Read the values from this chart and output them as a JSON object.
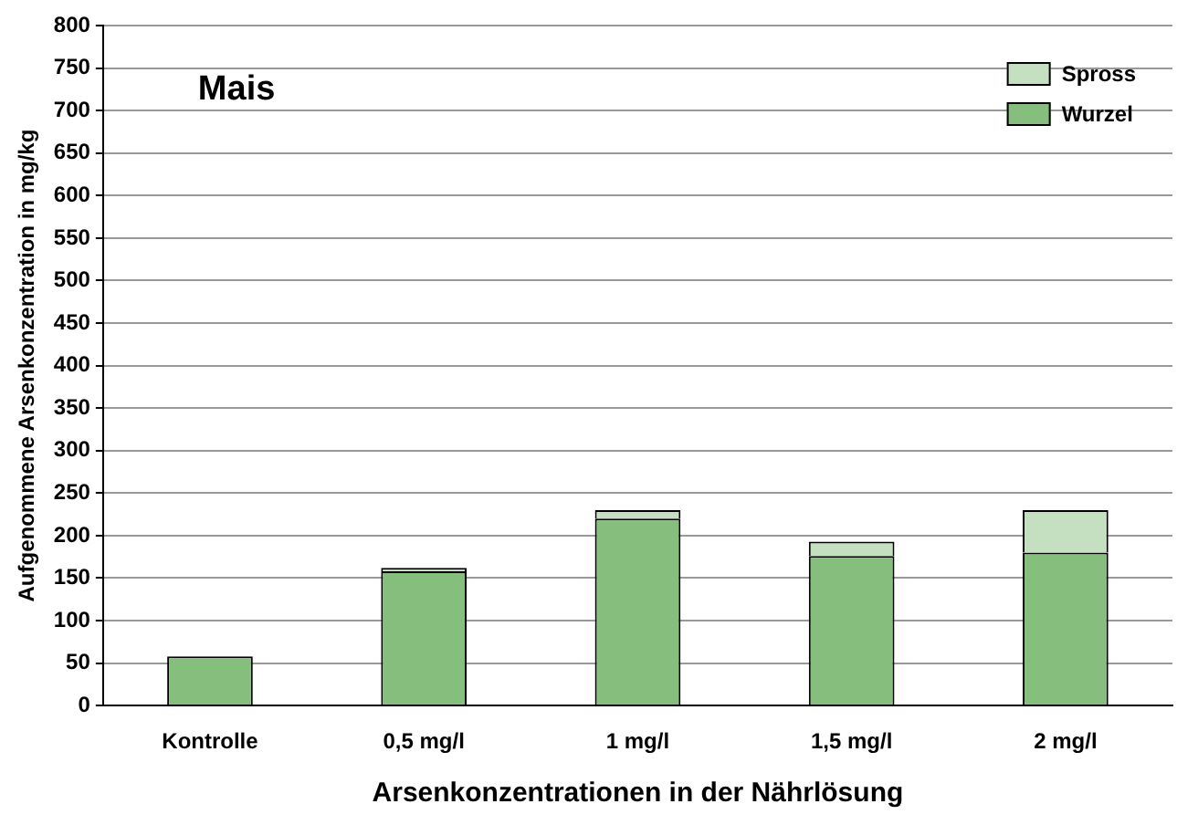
{
  "chart_data": {
    "type": "bar",
    "stacked": true,
    "categories": [
      "Kontrolle",
      "0,5 mg/l",
      "1 mg/l",
      "1,5 mg/l",
      "2 mg/l"
    ],
    "series": [
      {
        "name": "Wurzel",
        "color": "#86be7e",
        "values": [
          58,
          158,
          220,
          176,
          180
        ]
      },
      {
        "name": "Spross",
        "color": "#c5e0c0",
        "values": [
          null,
          4,
          10,
          17,
          50
        ]
      }
    ],
    "xlabel": "Arsenkonzentrationen in der Nährlösung",
    "ylabel": "Aufgenommene Arsenkonzentration in mg/kg",
    "annotations": [
      "Mais"
    ],
    "ylim": [
      0,
      800
    ],
    "yticks": [
      0,
      50,
      100,
      150,
      200,
      250,
      300,
      350,
      400,
      450,
      500,
      550,
      600,
      650,
      700,
      750,
      800
    ],
    "grid": "y",
    "legend": "top right"
  }
}
